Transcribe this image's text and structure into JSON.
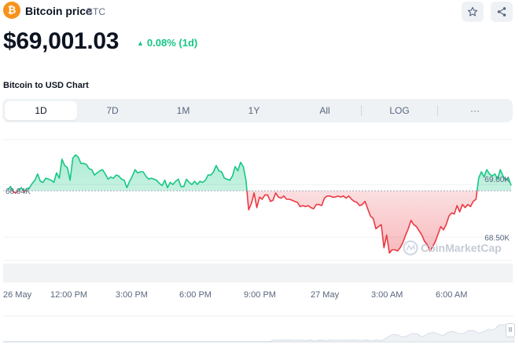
{
  "coin": {
    "logo_glyph": "₿",
    "name": "Bitcoin price",
    "symbol": "BTC"
  },
  "price": "$69,001.03",
  "change": {
    "arrow": "▲",
    "text": "0.08% (1d)",
    "color": "#16c784"
  },
  "chart_title": "Bitcoin to USD Chart",
  "tabs": [
    "1D",
    "7D",
    "1M",
    "1Y",
    "All",
    "LOG",
    "···"
  ],
  "active_tab": "1D",
  "actions": {
    "star": "star-icon",
    "share": "share-icon"
  },
  "colors": {
    "up": "#16c784",
    "down": "#ea3943",
    "brand": "#f7931a"
  },
  "watermark": "CoinMarketCap",
  "time_labels": [
    "26 May",
    "12:00 PM",
    "3:00 PM",
    "6:00 PM",
    "9:00 PM",
    "27 May",
    "3:00 AM",
    "6:00 AM"
  ],
  "nav_handle": "II",
  "chart_data": {
    "type": "line",
    "baseline": 68.94,
    "baseline_label": "68.94K",
    "y_ticks": [
      {
        "value": 69.0,
        "label": "69.00K"
      },
      {
        "value": 68.5,
        "label": "68.50K"
      }
    ],
    "ylim": [
      68.25,
      69.44
    ],
    "series": [
      {
        "values": [
          68.95,
          68.98,
          68.93,
          68.92,
          68.95,
          68.97,
          68.93,
          68.96,
          68.97,
          69.01,
          69.04,
          69.1,
          69.03,
          69.02,
          69.06,
          69.05,
          69.04,
          69.02,
          69.11,
          69.06,
          69.24,
          69.18,
          69.16,
          69.04,
          69.25,
          69.28,
          69.26,
          69.2,
          69.2,
          69.19,
          69.15,
          69.14,
          69.09,
          69.11,
          69.13,
          69.14,
          69.1,
          69.05,
          69.07,
          69.06,
          69.09,
          69.08,
          69.05,
          69.04,
          68.97,
          69.03,
          69.08,
          69.14,
          69.11,
          69.12,
          69.12,
          69.08,
          69.05,
          69.06,
          69.05,
          69.04,
          69.01,
          68.99,
          69.04,
          68.97,
          69.02,
          69.0,
          69.03,
          69.05,
          68.98,
          68.98,
          69.05,
          69.02,
          69.0,
          69.03,
          69.0,
          69.03,
          69.02,
          69.04,
          69.09,
          69.09,
          69.12,
          69.18,
          69.13,
          69.12,
          69.06,
          69.05,
          69.04,
          69.08,
          69.17,
          69.13,
          69.21,
          69.17,
          69.04,
          68.76,
          68.82,
          68.92,
          68.78,
          68.88,
          68.86,
          68.9,
          68.9,
          68.84,
          68.85,
          68.92,
          68.88,
          68.87,
          68.89,
          68.86,
          68.86,
          68.85,
          68.84,
          68.83,
          68.79,
          68.8,
          68.79,
          68.8,
          68.78,
          68.77,
          68.81,
          68.81,
          68.8,
          68.87,
          68.89,
          68.89,
          68.88,
          68.88,
          68.89,
          68.88,
          68.89,
          68.87,
          68.89,
          68.86,
          68.84,
          68.83,
          68.8,
          68.81,
          68.84,
          68.77,
          68.7,
          68.68,
          68.58,
          68.6,
          68.62,
          68.4,
          68.52,
          68.35,
          68.38,
          68.38,
          68.37,
          68.4,
          68.45,
          68.52,
          68.58,
          68.66,
          68.62,
          68.6,
          68.56,
          68.52,
          68.46,
          68.43,
          68.37,
          68.41,
          68.46,
          68.53,
          68.6,
          68.57,
          68.62,
          68.7,
          68.73,
          68.72,
          68.8,
          68.74,
          68.81,
          68.78,
          68.81,
          68.79,
          68.84,
          68.86,
          69.06,
          69.12,
          69.07,
          69.14,
          69.1,
          69.08,
          69.1,
          69.05,
          69.14,
          69.08,
          69.04,
          69.06,
          68.99
        ]
      }
    ]
  }
}
